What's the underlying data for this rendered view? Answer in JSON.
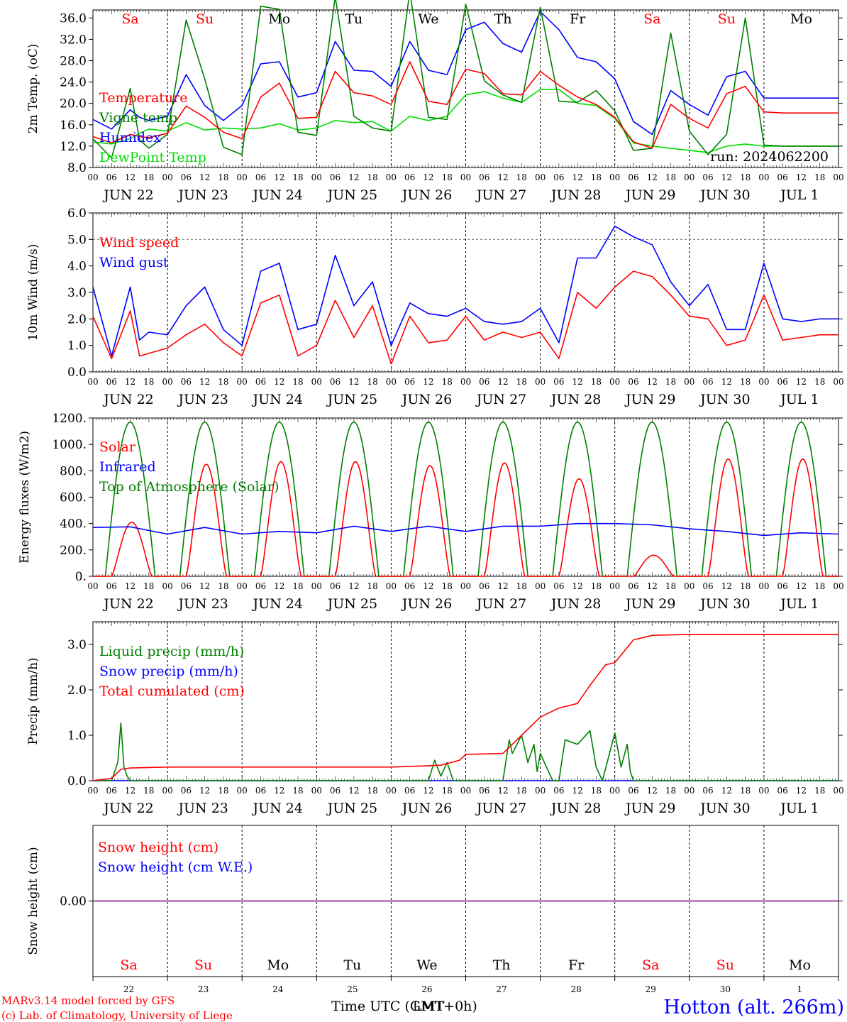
{
  "run_label": "run: 2024062200",
  "x_axis": {
    "hour_labels": [
      "00",
      "06",
      "12",
      "18"
    ],
    "date_labels": [
      "JUN 22",
      "JUN 23",
      "JUN 24",
      "JUN 25",
      "JUN 26",
      "JUN 27",
      "JUN 28",
      "JUN 29",
      "JUN 30",
      "JUL  1"
    ],
    "weekday_labels": [
      "Sa",
      "Su",
      "Mo",
      "Tu",
      "We",
      "Th",
      "Fr",
      "Sa",
      "Su",
      "Mo"
    ],
    "weekend_color": "#ff0000",
    "weekday_color": "#000000",
    "day_numbers": [
      "22",
      "23",
      "24",
      "25",
      "26",
      "27",
      "28",
      "29",
      "30",
      "1"
    ],
    "title": "Time UTC (GMT+0h)",
    "title_overlap": "LMT"
  },
  "footer": {
    "model": "MARv3.14 model forced by GFS",
    "copyright": "(c) Lab. of Climatology, University of Liege",
    "station": "Hotton (alt. 266m)",
    "station_color": "#0000ff",
    "credit_color": "#ff0000"
  },
  "colors": {
    "red": "#ff0000",
    "green": "#008000",
    "blue": "#0000ff",
    "lightgreen": "#00dd00",
    "purple": "#800080"
  },
  "chart_data": [
    {
      "id": "temperature",
      "type": "line",
      "ylabel": "2m Temp. (oC)",
      "ylim": [
        8,
        37.5
      ],
      "yticks": [
        "8.0",
        "12.0",
        "16.0",
        "20.0",
        "24.0",
        "28.0",
        "32.0",
        "36.0"
      ],
      "legend": [
        "Temperature",
        "Vigne temp",
        "Humidex",
        "DewPoint Temp"
      ],
      "x": [
        0,
        6,
        12,
        15,
        18,
        24,
        30,
        36,
        42,
        48,
        54,
        60,
        66,
        72,
        78,
        84,
        90,
        96,
        102,
        108,
        114,
        120,
        126,
        132,
        138,
        144,
        150,
        156,
        162,
        168,
        174,
        180,
        186,
        192,
        198,
        204,
        210,
        216,
        222,
        228,
        234,
        240
      ],
      "series": [
        {
          "name": "Temperature",
          "color": "#ff0000",
          "values": [
            13.8,
            12.6,
            14.2,
            13.8,
            13.6,
            14.4,
            19.5,
            17.4,
            14.6,
            13.4,
            21.2,
            23.8,
            17.2,
            17.4,
            26.0,
            22.0,
            21.4,
            19.8,
            27.8,
            20.4,
            19.8,
            26.4,
            25.6,
            21.8,
            21.6,
            26.0,
            23.4,
            21.2,
            19.8,
            17.4,
            12.8,
            11.6,
            19.8,
            17.2,
            15.4,
            21.8,
            23.2,
            18.4,
            18.2,
            18.2,
            18.2,
            18.2
          ]
        },
        {
          "name": "Vigne temp",
          "color": "#008000",
          "values": [
            13.4,
            9.8,
            22.8,
            13.2,
            11.6,
            14.2,
            35.6,
            24.6,
            11.8,
            10.4,
            38.2,
            37.6,
            14.6,
            14.0,
            40.0,
            17.6,
            15.4,
            14.8,
            41.0,
            17.4,
            17.0,
            38.6,
            24.2,
            21.6,
            20.2,
            38.0,
            20.4,
            20.2,
            22.4,
            18.6,
            11.2,
            11.6,
            33.2,
            14.8,
            10.4,
            14.2,
            36.0,
            12.2,
            12.0,
            12.0,
            12.0,
            12.0
          ]
        },
        {
          "name": "Humidex",
          "color": "#0000ff",
          "values": [
            17.0,
            15.2,
            18.8,
            17.4,
            16.8,
            17.6,
            25.4,
            19.6,
            16.8,
            19.6,
            27.4,
            27.8,
            21.2,
            22.0,
            31.6,
            26.2,
            26.0,
            23.2,
            31.6,
            26.2,
            25.4,
            33.8,
            35.2,
            31.2,
            29.6,
            37.2,
            33.8,
            28.6,
            27.8,
            24.6,
            16.6,
            14.2,
            22.4,
            19.8,
            17.8,
            25.0,
            26.0,
            21.0,
            21.0,
            21.0,
            21.0,
            21.0
          ]
        },
        {
          "name": "DewPoint Temp",
          "color": "#00dd00",
          "values": [
            12.8,
            12.4,
            13.4,
            14.4,
            15.2,
            14.8,
            16.4,
            15.0,
            15.4,
            15.2,
            15.4,
            16.2,
            15.0,
            15.4,
            16.8,
            16.4,
            16.6,
            14.8,
            17.6,
            16.8,
            17.6,
            21.6,
            22.2,
            21.0,
            20.2,
            22.6,
            22.6,
            20.0,
            19.6,
            17.2,
            12.6,
            12.0,
            11.6,
            11.2,
            10.8,
            12.0,
            12.4,
            12.0,
            12.0,
            12.0,
            12.0,
            12.0
          ]
        }
      ]
    },
    {
      "id": "wind",
      "type": "line",
      "ylabel": "10m Wind (m/s)",
      "ylim": [
        0,
        6
      ],
      "yticks": [
        "0.0",
        "1.0",
        "2.0",
        "3.0",
        "4.0",
        "5.0",
        "6.0"
      ],
      "dashed_line": 5,
      "legend": [
        "Wind speed",
        "Wind gust"
      ],
      "x": [
        0,
        6,
        12,
        15,
        18,
        24,
        30,
        36,
        42,
        48,
        54,
        60,
        66,
        72,
        78,
        84,
        90,
        96,
        102,
        108,
        114,
        120,
        126,
        132,
        138,
        144,
        150,
        156,
        162,
        168,
        174,
        180,
        186,
        192,
        198,
        204,
        210,
        216,
        222,
        228,
        234,
        240
      ],
      "series": [
        {
          "name": "Wind speed",
          "color": "#ff0000",
          "values": [
            2.1,
            0.5,
            2.3,
            0.6,
            0.7,
            0.9,
            1.4,
            1.8,
            1.1,
            0.6,
            2.6,
            2.9,
            0.6,
            1.0,
            2.7,
            1.3,
            2.5,
            0.3,
            2.1,
            1.1,
            1.2,
            2.1,
            1.2,
            1.5,
            1.3,
            1.5,
            0.5,
            3.0,
            2.4,
            3.2,
            3.8,
            3.6,
            2.9,
            2.1,
            2.0,
            1.0,
            1.2,
            2.9,
            1.2,
            1.3,
            1.4,
            1.4
          ]
        },
        {
          "name": "Wind gust",
          "color": "#0000ff",
          "values": [
            3.2,
            0.6,
            3.2,
            1.2,
            1.5,
            1.4,
            2.5,
            3.2,
            1.6,
            1.0,
            3.8,
            4.1,
            1.6,
            1.8,
            4.4,
            2.5,
            3.4,
            1.0,
            2.6,
            2.2,
            2.1,
            2.4,
            1.9,
            1.8,
            1.9,
            2.4,
            1.1,
            4.3,
            4.3,
            5.5,
            5.1,
            4.8,
            3.4,
            2.5,
            3.3,
            1.6,
            1.6,
            4.1,
            2.0,
            1.9,
            2.0,
            2.0
          ]
        }
      ]
    },
    {
      "id": "energy",
      "type": "line",
      "ylabel": "Energy fluxes (W/m2)",
      "ylim": [
        0,
        1200
      ],
      "yticks": [
        "0.",
        "200.",
        "400.",
        "600.",
        "800.",
        "1000.",
        "1200."
      ],
      "legend": [
        "Solar",
        "Infrared",
        "Top of Atmosphere (Solar)"
      ],
      "toa_daily_peak": 1170,
      "toa_day_hours": [
        4,
        20
      ],
      "solar_daily_peaks": [
        410,
        850,
        870,
        870,
        840,
        860,
        740,
        160,
        890,
        890
      ],
      "series": [
        {
          "name": "Infrared",
          "color": "#0000ff",
          "x": [
            0,
            12,
            24,
            36,
            48,
            60,
            72,
            84,
            96,
            108,
            120,
            132,
            144,
            156,
            168,
            180,
            192,
            204,
            216,
            228,
            240
          ],
          "values": [
            370,
            375,
            320,
            370,
            320,
            340,
            330,
            380,
            340,
            380,
            340,
            380,
            380,
            400,
            400,
            390,
            360,
            340,
            310,
            330,
            320
          ]
        }
      ]
    },
    {
      "id": "precip",
      "type": "line",
      "ylabel": "Precip (mm/h)",
      "ylim": [
        0,
        3.5
      ],
      "yticks": [
        "0.0",
        "1.0",
        "2.0",
        "3.0"
      ],
      "legend": [
        "Liquid precip (mm/h)",
        "Snow precip (mm/h)",
        "Total cumulated (cm)"
      ],
      "series": [
        {
          "name": "Total cumulated (cm)",
          "color": "#ff0000",
          "x": [
            0,
            6,
            9,
            12,
            24,
            96,
            108,
            112,
            118,
            120,
            132,
            138,
            144,
            150,
            156,
            160,
            165,
            168,
            174,
            180,
            192,
            240
          ],
          "values": [
            0.0,
            0.05,
            0.25,
            0.28,
            0.3,
            0.3,
            0.33,
            0.34,
            0.45,
            0.58,
            0.6,
            1.0,
            1.4,
            1.6,
            1.7,
            2.1,
            2.55,
            2.6,
            3.1,
            3.2,
            3.22,
            3.22
          ]
        },
        {
          "name": "Liquid precip (mm/h)",
          "color": "#008000",
          "x": [
            0,
            6,
            8,
            9,
            10,
            11,
            12,
            96,
            108,
            110,
            112,
            114,
            116,
            120,
            132,
            134,
            135,
            138,
            140,
            142,
            143,
            144,
            148,
            150,
            152,
            156,
            160,
            162,
            164,
            168,
            170,
            172,
            173,
            174,
            180,
            240
          ],
          "values": [
            0,
            0,
            0.4,
            1.27,
            0.3,
            0.1,
            0,
            0,
            0,
            0.45,
            0.1,
            0.4,
            0,
            0,
            0,
            0.9,
            0.6,
            1.0,
            0.4,
            0.8,
            0.2,
            0.6,
            0,
            0,
            0.9,
            0.8,
            1.1,
            0.3,
            0,
            1.05,
            0.3,
            0.8,
            0.2,
            0,
            0,
            0
          ]
        },
        {
          "name": "Snow precip (mm/h)",
          "color": "#0000ff",
          "x": [
            0,
            240
          ],
          "values": [
            0,
            0
          ]
        }
      ]
    },
    {
      "id": "snow",
      "type": "line",
      "ylabel": "Snow height (cm)",
      "ylim": [
        -1,
        1
      ],
      "yticks": [
        "0.00"
      ],
      "legend": [
        "Snow height (cm)",
        "Snow height (cm W.E.)"
      ],
      "series": [
        {
          "name": "Snow height (cm)",
          "color": "#ff0000",
          "x": [
            0,
            240
          ],
          "values": [
            0,
            0
          ]
        },
        {
          "name": "Snow height (cm W.E.)",
          "color": "#0000ff",
          "x": [
            0,
            240
          ],
          "values": [
            0,
            0
          ]
        }
      ]
    }
  ]
}
